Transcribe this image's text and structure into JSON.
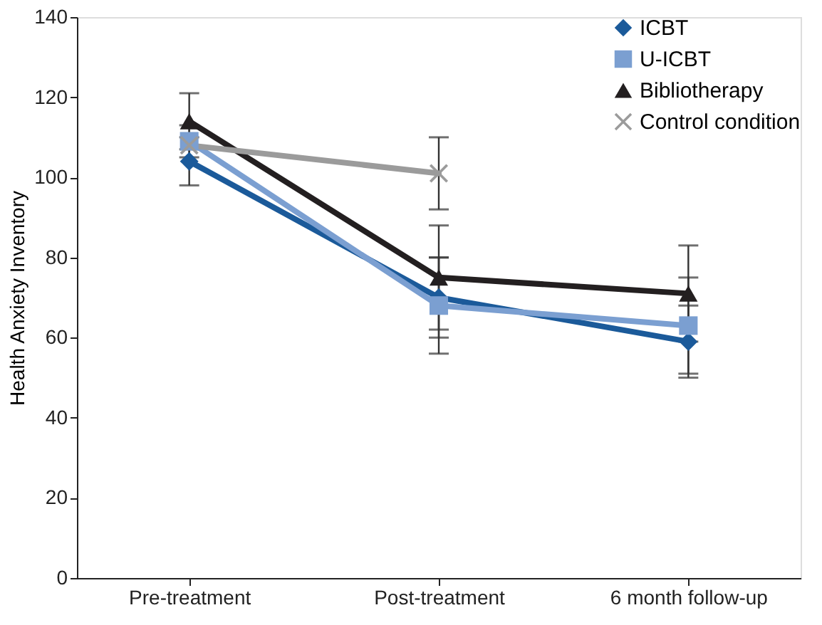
{
  "chart_data": {
    "type": "line",
    "ylabel": "Health Anxiety Inventory",
    "categories": [
      "Pre-treatment",
      "Post-treatment",
      "6 month follow-up"
    ],
    "ylim": [
      0,
      140
    ],
    "yticks": [
      0,
      20,
      40,
      60,
      80,
      100,
      120,
      140
    ],
    "grid": false,
    "legend": "top right",
    "series": [
      {
        "name": "ICBT",
        "color": "#1b5a9a",
        "marker": "diamond",
        "values": [
          104,
          70,
          59
        ],
        "errors": [
          6,
          10,
          9
        ]
      },
      {
        "name": "U-ICBT",
        "color": "#7b9fd1",
        "marker": "square",
        "values": [
          109,
          68,
          63
        ],
        "errors": [
          4,
          12,
          12
        ]
      },
      {
        "name": "Bibliotherapy",
        "color": "#231f20",
        "marker": "triangle",
        "values": [
          114,
          75,
          71
        ],
        "errors": [
          7,
          13,
          12
        ]
      },
      {
        "name": "Control condition",
        "color": "#9b9b9b",
        "marker": "cross",
        "values": [
          108,
          101,
          null
        ],
        "errors": [
          null,
          9,
          null
        ]
      }
    ]
  }
}
